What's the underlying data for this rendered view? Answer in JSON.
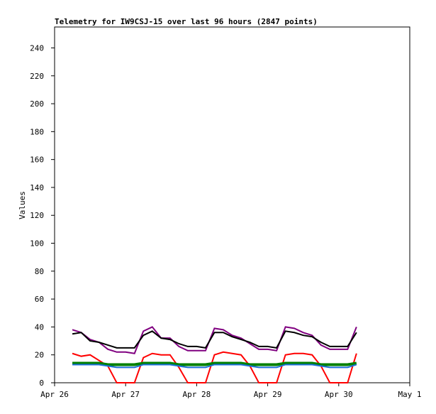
{
  "chart_data": {
    "type": "line",
    "title": "Telemetry for IW9CSJ-15 over last 96 hours (2847 points)",
    "y_label": "Values",
    "x": [
      0.25,
      0.375,
      0.5,
      0.625,
      0.75,
      0.875,
      1.0,
      1.125,
      1.25,
      1.375,
      1.5,
      1.625,
      1.75,
      1.875,
      2.0,
      2.125,
      2.25,
      2.375,
      2.5,
      2.625,
      2.75,
      2.875,
      3.0,
      3.125,
      3.25,
      3.375,
      3.5,
      3.625,
      3.75,
      3.875,
      4.0,
      4.125,
      4.25
    ],
    "xlim": [
      0,
      5
    ],
    "xticks": [
      {
        "value": 0,
        "label": "Apr 26"
      },
      {
        "value": 1,
        "label": "Apr 27"
      },
      {
        "value": 2,
        "label": "Apr 28"
      },
      {
        "value": 3,
        "label": "Apr 29"
      },
      {
        "value": 4,
        "label": "Apr 30"
      },
      {
        "value": 5,
        "label": "May 1"
      }
    ],
    "ylim": [
      0,
      255
    ],
    "yticks": [
      0,
      20,
      40,
      60,
      80,
      100,
      120,
      140,
      160,
      180,
      200,
      220,
      240
    ],
    "series": [
      {
        "color": "#800080",
        "values": [
          38,
          36,
          31,
          29,
          24,
          22,
          22,
          21,
          37,
          40,
          32,
          32,
          26,
          23,
          23,
          23,
          39,
          38,
          34,
          32,
          28,
          24,
          24,
          23,
          40,
          39,
          36,
          34,
          27,
          24,
          24,
          24,
          40
        ]
      },
      {
        "color": "#000000",
        "values": [
          35,
          36,
          30,
          29,
          27,
          25,
          25,
          25,
          34,
          37,
          32,
          31,
          28,
          26,
          26,
          25,
          36,
          36,
          33,
          31,
          29,
          26,
          26,
          25,
          37,
          36,
          34,
          33,
          29,
          26,
          26,
          26,
          36
        ]
      },
      {
        "color": "#ff0000",
        "values": [
          21,
          19,
          20,
          16,
          12,
          0,
          0,
          0,
          18,
          21,
          20,
          20,
          11,
          0,
          0,
          0,
          20,
          22,
          21,
          20,
          12,
          0,
          0,
          0,
          20,
          21,
          21,
          20,
          12,
          0,
          0,
          0,
          21
        ]
      },
      {
        "color": "#008000",
        "values": [
          14,
          14,
          14,
          14,
          13,
          13,
          13,
          13,
          14,
          14,
          14,
          14,
          13,
          13,
          13,
          13,
          14,
          14,
          14,
          14,
          13,
          13,
          13,
          13,
          14,
          14,
          14,
          14,
          13,
          13,
          13,
          13,
          14
        ]
      },
      {
        "color": "#1e6fd9",
        "values": [
          13,
          13,
          13,
          13,
          12,
          11,
          11,
          11,
          13,
          13,
          13,
          13,
          12,
          11,
          11,
          11,
          13,
          13,
          13,
          13,
          12,
          11,
          11,
          11,
          13,
          13,
          13,
          13,
          12,
          11,
          11,
          11,
          13
        ]
      }
    ]
  }
}
